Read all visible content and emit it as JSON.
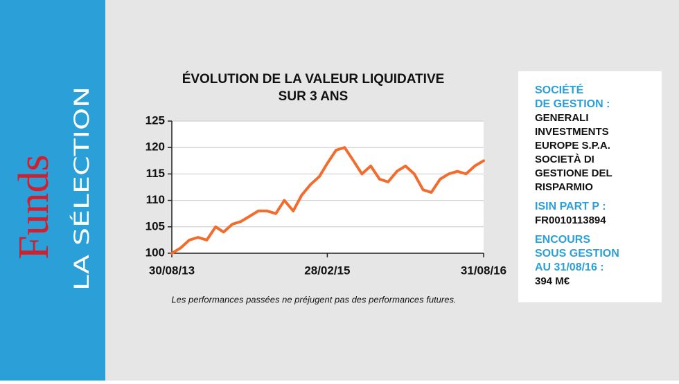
{
  "sidebar": {
    "brand": "Funds",
    "section": "LA SÉLECTION"
  },
  "chart_data": {
    "type": "line",
    "title": [
      "ÉVOLUTION DE LA VALEUR LIQUIDATIVE",
      "SUR 3 ANS"
    ],
    "x": [
      "2013-08-30",
      "2013-09-30",
      "2013-10-31",
      "2013-11-30",
      "2013-12-31",
      "2014-01-31",
      "2014-02-28",
      "2014-03-31",
      "2014-04-30",
      "2014-05-31",
      "2014-06-30",
      "2014-07-31",
      "2014-08-31",
      "2014-09-30",
      "2014-10-31",
      "2014-11-30",
      "2014-12-31",
      "2015-01-31",
      "2015-02-28",
      "2015-03-31",
      "2015-04-30",
      "2015-05-31",
      "2015-06-30",
      "2015-07-31",
      "2015-08-31",
      "2015-09-30",
      "2015-10-31",
      "2015-11-30",
      "2015-12-31",
      "2016-01-31",
      "2016-02-29",
      "2016-03-31",
      "2016-04-30",
      "2016-05-31",
      "2016-06-30",
      "2016-07-31",
      "2016-08-31"
    ],
    "values": [
      100,
      101,
      102.5,
      103,
      102.5,
      105,
      104,
      105.5,
      106,
      107,
      108,
      108,
      107.5,
      110,
      108,
      111,
      113,
      114.5,
      117,
      119.5,
      120,
      117.5,
      115,
      116.5,
      114,
      113.5,
      115.5,
      116.5,
      115,
      112,
      111.5,
      114,
      115,
      115.5,
      115,
      116.5,
      117.5
    ],
    "color": "#f26c2d",
    "xlim": [
      "2013-08-30",
      "2016-08-31"
    ],
    "xticks": [
      {
        "value": "2013-08-30",
        "label": "30/08/13"
      },
      {
        "value": "2015-02-28",
        "label": "28/02/15"
      },
      {
        "value": "2016-08-31",
        "label": "31/08/16"
      }
    ],
    "ylim": [
      100,
      125
    ],
    "yticks": [
      100,
      105,
      110,
      115,
      120,
      125
    ],
    "grid": true,
    "note": "Les performances passées ne préjugent pas des performances futures."
  },
  "info": [
    {
      "label": [
        "SOCIÉTÉ",
        "DE GESTION :"
      ],
      "value": [
        "GENERALI",
        "INVESTMENTS",
        "EUROPE S.P.A.",
        "SOCIETÀ DI",
        "GESTIONE DEL",
        "RISPARMIO"
      ]
    },
    {
      "label": [
        "ISIN PART P :"
      ],
      "value": [
        "FR0010113894"
      ]
    },
    {
      "label": [
        "ENCOURS",
        "SOUS GESTION",
        "AU 31/08/16 :"
      ],
      "value": [
        "394 M€"
      ]
    }
  ]
}
